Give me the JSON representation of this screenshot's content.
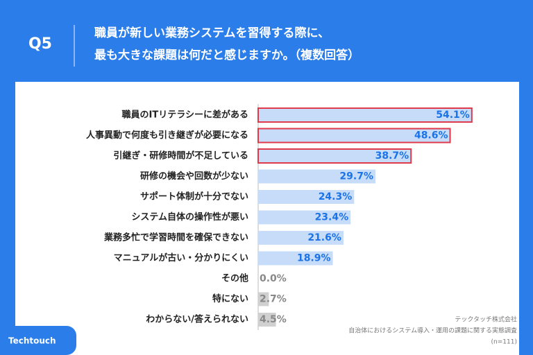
{
  "chart_data": {
    "type": "bar",
    "orientation": "horizontal",
    "question": "Q5",
    "title": [
      "職員が新しい業務システムを習得する際に、",
      "最も大きな課題は何だと感じますか。（複数回答）"
    ],
    "categories": [
      "職員のITリテラシーに差がある",
      "人事異動で何度も引き継ぎが必要になる",
      "引継ぎ・研修時間が不足している",
      "研修の機会や回数が少ない",
      "サポート体制が十分でない",
      "システム自体の操作性が悪い",
      "業務多忙で学習時間を確保できない",
      "マニュアルが古い・分かりにくい",
      "その他",
      "特にない",
      "わからない/答えられない"
    ],
    "values": [
      54.1,
      48.6,
      38.7,
      29.7,
      24.3,
      23.4,
      21.6,
      18.9,
      0.0,
      2.7,
      4.5
    ],
    "value_labels": [
      "54.1%",
      "48.6%",
      "38.7%",
      "29.7%",
      "24.3%",
      "23.4%",
      "21.6%",
      "18.9%",
      "0.0%",
      "2.7%",
      "4.5%"
    ],
    "colors": [
      "#c6dcf8",
      "#c6dcf8",
      "#c6dcf8",
      "#c6dcf8",
      "#c6dcf8",
      "#c6dcf8",
      "#c6dcf8",
      "#c6dcf8",
      "#d0d0d0",
      "#d0d0d0",
      "#d0d0d0"
    ],
    "label_colors": [
      "#1a73e8",
      "#1a73e8",
      "#1a73e8",
      "#1a73e8",
      "#1a73e8",
      "#1a73e8",
      "#1a73e8",
      "#1a73e8",
      "#888888",
      "#888888",
      "#888888"
    ],
    "highlight": [
      0,
      1,
      2
    ],
    "highlight_color": "#e0394a",
    "xlim": [
      0,
      100
    ],
    "source": [
      "テックタッチ株式会社",
      "自治体におけるシステム導入・運用の課題に関する実態調査",
      "(n=111)"
    ],
    "logo": "Techtouch"
  }
}
